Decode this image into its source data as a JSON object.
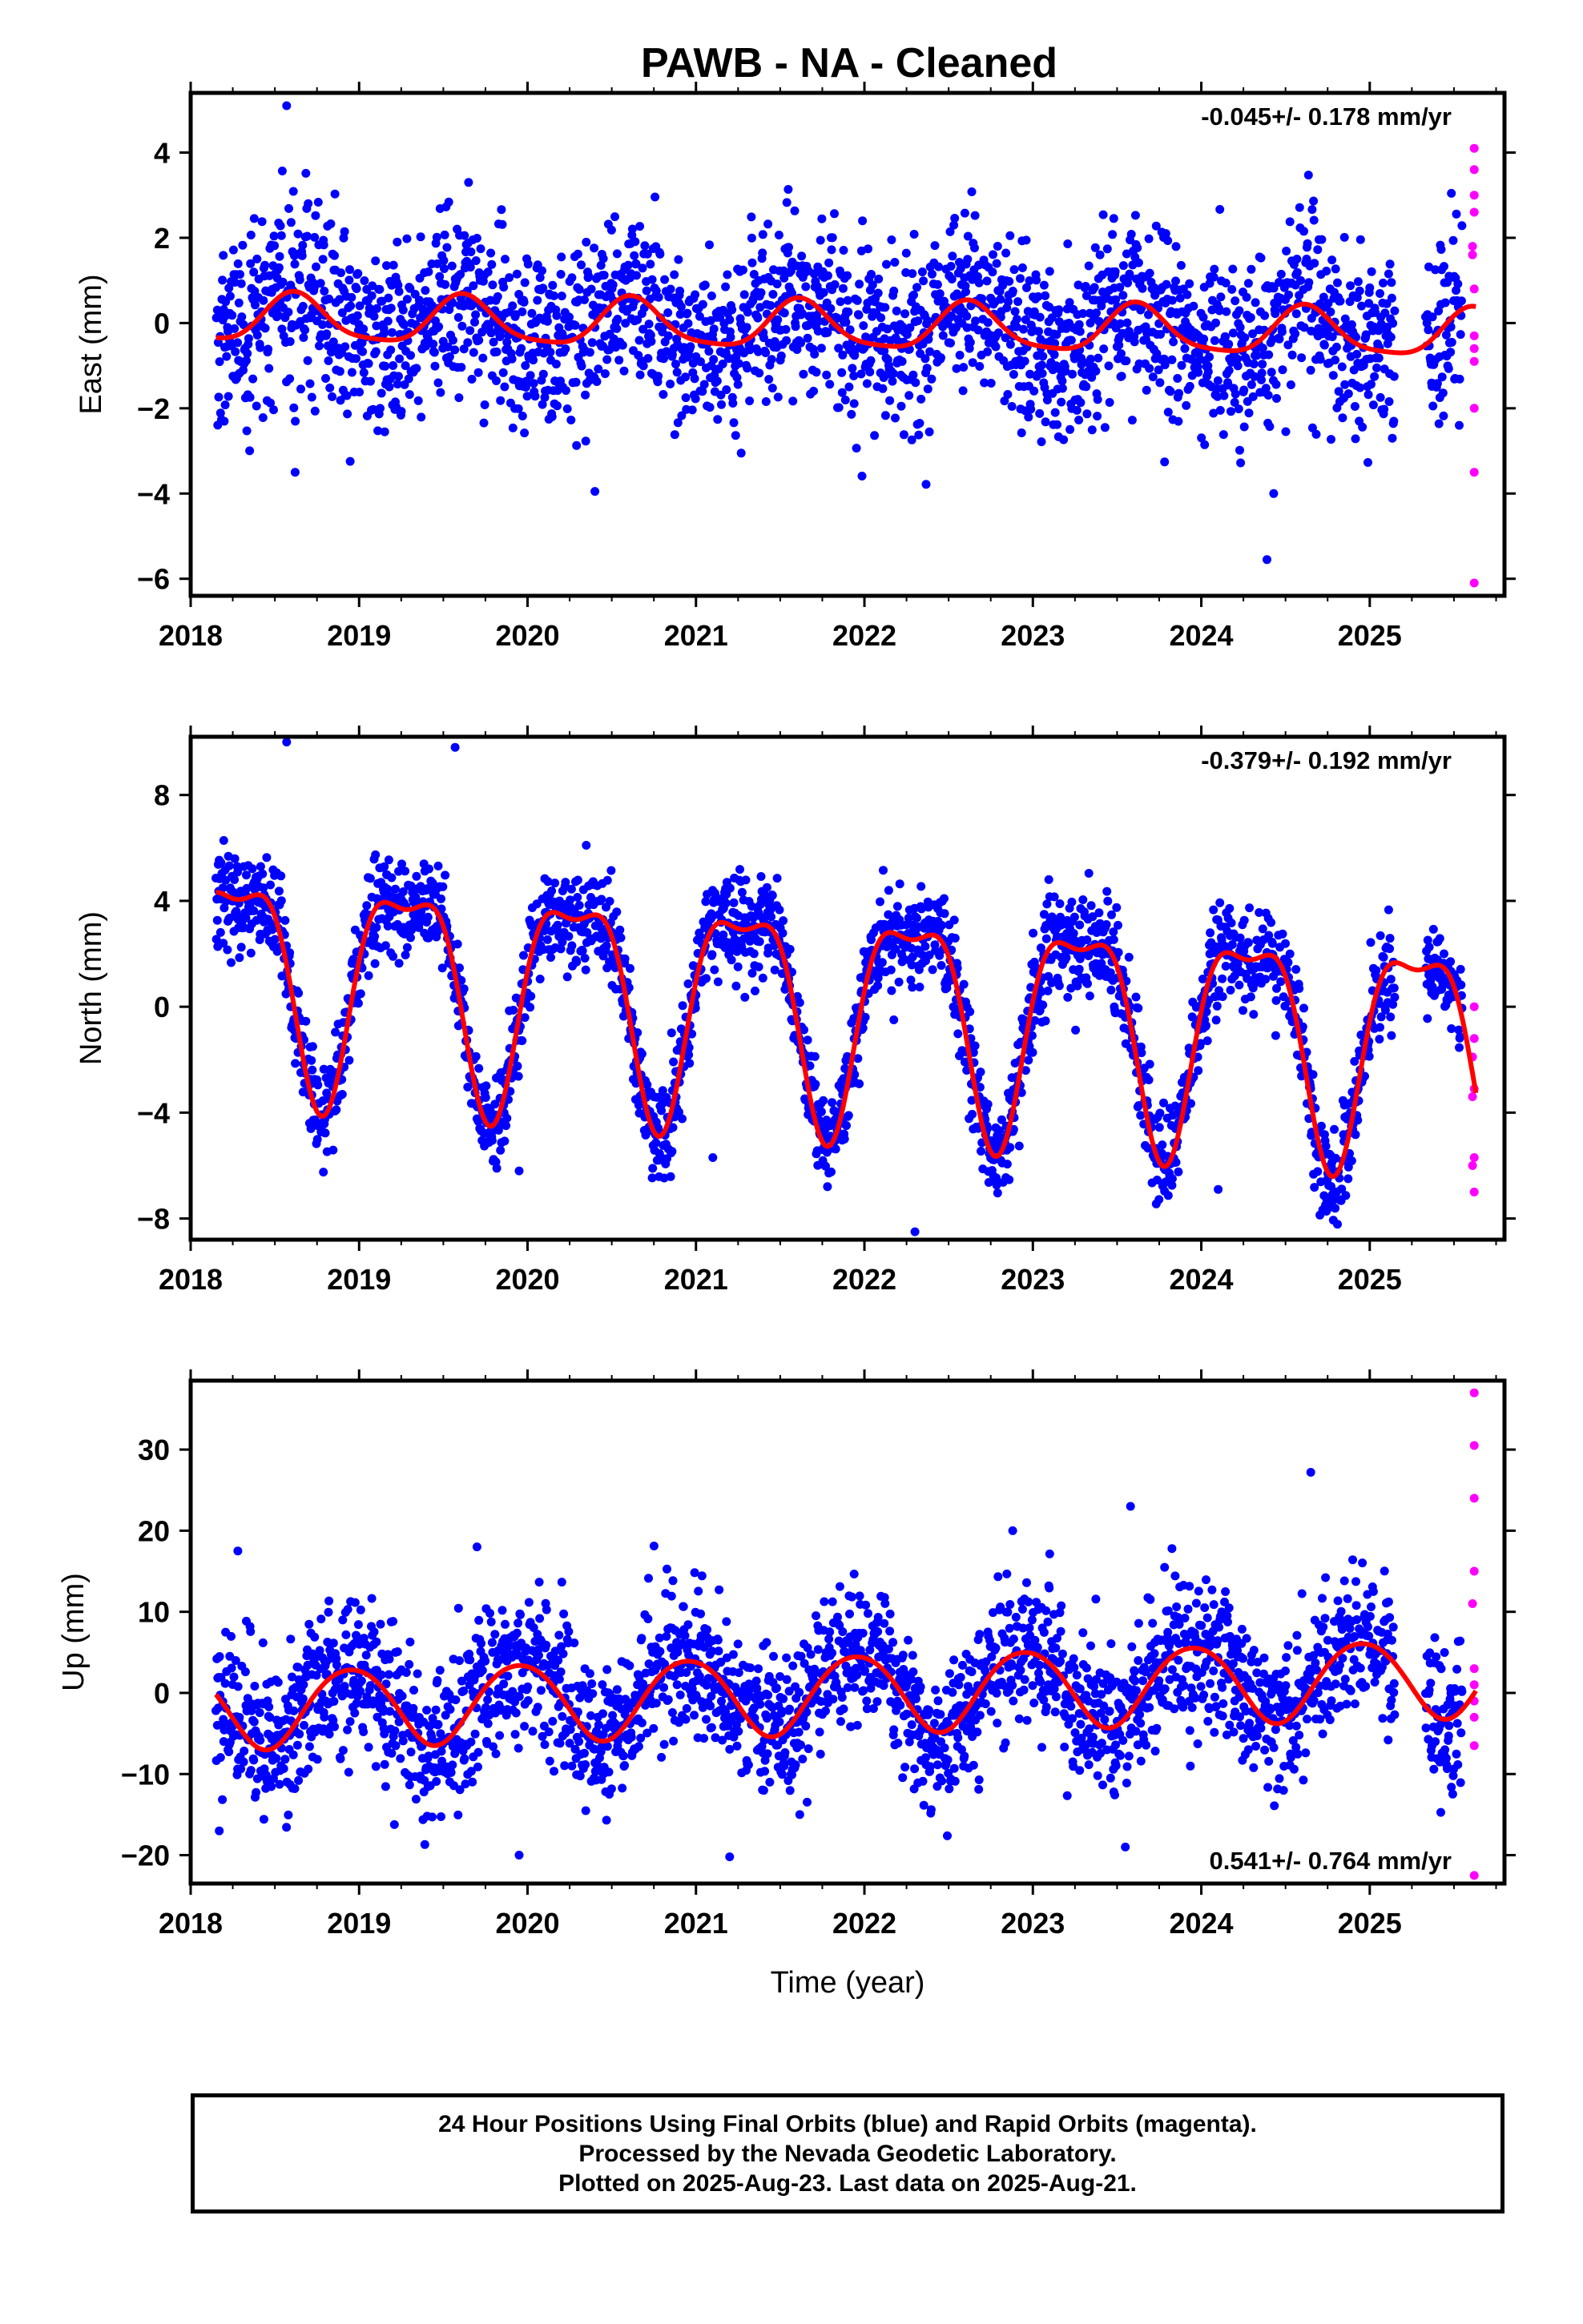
{
  "title": "PAWB  - NA - Cleaned",
  "xlabel": "Time (year)",
  "footer": {
    "line1": "24 Hour Positions Using Final Orbits (blue) and Rapid Orbits (magenta).",
    "line2": "Processed by the Nevada Geodetic Laboratory.",
    "line3": "Plotted on 2025-Aug-23. Last data on 2025-Aug-21."
  },
  "colors": {
    "final": "#0000ff",
    "rapid": "#ff00ff",
    "model": "#ff0000",
    "axis": "#000000"
  },
  "chart_data": [
    {
      "type": "scatter",
      "ylabel": "East (mm)",
      "rate_label": "-0.045+/- 0.178 mm/yr",
      "rate_position": "top-right",
      "xlim": [
        2018.0,
        2025.8
      ],
      "ylim": [
        -6.4,
        5.4
      ],
      "xticks": [
        2018,
        2019,
        2020,
        2021,
        2022,
        2023,
        2024,
        2025
      ],
      "yticks": [
        -6,
        -4,
        -2,
        0,
        2,
        4
      ],
      "data_range": [
        2018.15,
        2025.55
      ],
      "gap": [
        2025.15,
        2025.33
      ],
      "model": {
        "offset": 0.1,
        "trend": -0.05,
        "ann_amp": 0.55,
        "ann_phase": 0.62,
        "semi_amp": 0.12,
        "semi_phase": 0.1,
        "t0": 2018.15,
        "t_end": 2025.63
      },
      "noise_sd": 1.05,
      "outliers": [
        {
          "x": 2018.57,
          "y": 5.1
        },
        {
          "x": 2020.4,
          "y": -3.95
        },
        {
          "x": 2024.39,
          "y": -5.55
        },
        {
          "x": 2024.43,
          "y": -4.0
        },
        {
          "x": 2019.65,
          "y": 3.3
        },
        {
          "x": 2018.62,
          "y": -3.5
        }
      ],
      "rapid": [
        {
          "x": 2025.62,
          "y": 4.1
        },
        {
          "x": 2025.62,
          "y": 3.6
        },
        {
          "x": 2025.62,
          "y": 3.0
        },
        {
          "x": 2025.62,
          "y": 2.6
        },
        {
          "x": 2025.61,
          "y": 1.8
        },
        {
          "x": 2025.61,
          "y": 1.6
        },
        {
          "x": 2025.62,
          "y": 0.8
        },
        {
          "x": 2025.62,
          "y": -0.3
        },
        {
          "x": 2025.62,
          "y": -0.6
        },
        {
          "x": 2025.62,
          "y": -0.9
        },
        {
          "x": 2025.62,
          "y": -2.0
        },
        {
          "x": 2025.62,
          "y": -3.5
        },
        {
          "x": 2025.62,
          "y": -6.1
        }
      ]
    },
    {
      "type": "scatter",
      "ylabel": "North (mm)",
      "rate_label": "-0.379+/- 0.192 mm/yr",
      "rate_position": "top-right",
      "xlim": [
        2018.0,
        2025.8
      ],
      "ylim": [
        -8.8,
        10.2
      ],
      "xticks": [
        2018,
        2019,
        2020,
        2021,
        2022,
        2023,
        2024,
        2025
      ],
      "yticks": [
        -8,
        -4,
        0,
        4,
        8
      ],
      "data_range": [
        2018.15,
        2025.55
      ],
      "gap": [
        2025.15,
        2025.33
      ],
      "model": {
        "offset": 1.5,
        "trend": -0.38,
        "ann_amp": 4.0,
        "ann_phase": 0.28,
        "semi_amp": 1.4,
        "semi_phase": 0.03,
        "t0": 2018.15,
        "t_end": 2025.63
      },
      "noise_sd": 0.95,
      "outliers": [
        {
          "x": 2022.3,
          "y": -8.5
        },
        {
          "x": 2019.95,
          "y": -6.2
        },
        {
          "x": 2024.1,
          "y": -6.9
        },
        {
          "x": 2018.57,
          "y": 10.0
        },
        {
          "x": 2019.57,
          "y": 9.8
        },
        {
          "x": 2021.1,
          "y": -5.7
        }
      ],
      "rapid": [
        {
          "x": 2025.62,
          "y": 0.0
        },
        {
          "x": 2025.62,
          "y": -1.2
        },
        {
          "x": 2025.61,
          "y": -1.9
        },
        {
          "x": 2025.62,
          "y": -3.1
        },
        {
          "x": 2025.61,
          "y": -3.4
        },
        {
          "x": 2025.62,
          "y": -5.7
        },
        {
          "x": 2025.61,
          "y": -6.0
        },
        {
          "x": 2025.62,
          "y": -7.0
        }
      ]
    },
    {
      "type": "scatter",
      "ylabel": "Up (mm)",
      "rate_label": "0.541+/- 0.764 mm/yr",
      "rate_position": "bottom-right",
      "xlim": [
        2018.0,
        2025.8
      ],
      "ylim": [
        -23.5,
        38.5
      ],
      "xticks": [
        2018,
        2019,
        2020,
        2021,
        2022,
        2023,
        2024,
        2025
      ],
      "yticks": [
        -20,
        -10,
        0,
        10,
        20,
        30
      ],
      "data_range": [
        2018.15,
        2025.55
      ],
      "gap": [
        2025.15,
        2025.33
      ],
      "model": {
        "offset": -2.0,
        "trend": 0.54,
        "ann_amp": 4.8,
        "ann_phase": 0.95,
        "semi_amp": 0.4,
        "semi_phase": 0.2,
        "t0": 2018.15,
        "t_end": 2025.63
      },
      "noise_sd": 4.6,
      "outliers": [
        {
          "x": 2024.65,
          "y": 27.2
        },
        {
          "x": 2023.58,
          "y": 23.0
        },
        {
          "x": 2022.88,
          "y": 20.0
        },
        {
          "x": 2021.2,
          "y": -20.2
        },
        {
          "x": 2019.95,
          "y": -20.0
        },
        {
          "x": 2018.17,
          "y": -17.0
        },
        {
          "x": 2018.28,
          "y": 17.5
        },
        {
          "x": 2019.7,
          "y": 18.0
        }
      ],
      "rapid": [
        {
          "x": 2025.62,
          "y": 37.0
        },
        {
          "x": 2025.62,
          "y": 30.5
        },
        {
          "x": 2025.62,
          "y": 24.0
        },
        {
          "x": 2025.62,
          "y": 15.0
        },
        {
          "x": 2025.61,
          "y": 11.0
        },
        {
          "x": 2025.62,
          "y": 3.0
        },
        {
          "x": 2025.62,
          "y": 1.0
        },
        {
          "x": 2025.62,
          "y": -1.0
        },
        {
          "x": 2025.62,
          "y": -3.0
        },
        {
          "x": 2025.62,
          "y": -6.5
        },
        {
          "x": 2025.62,
          "y": -22.5
        }
      ]
    }
  ]
}
